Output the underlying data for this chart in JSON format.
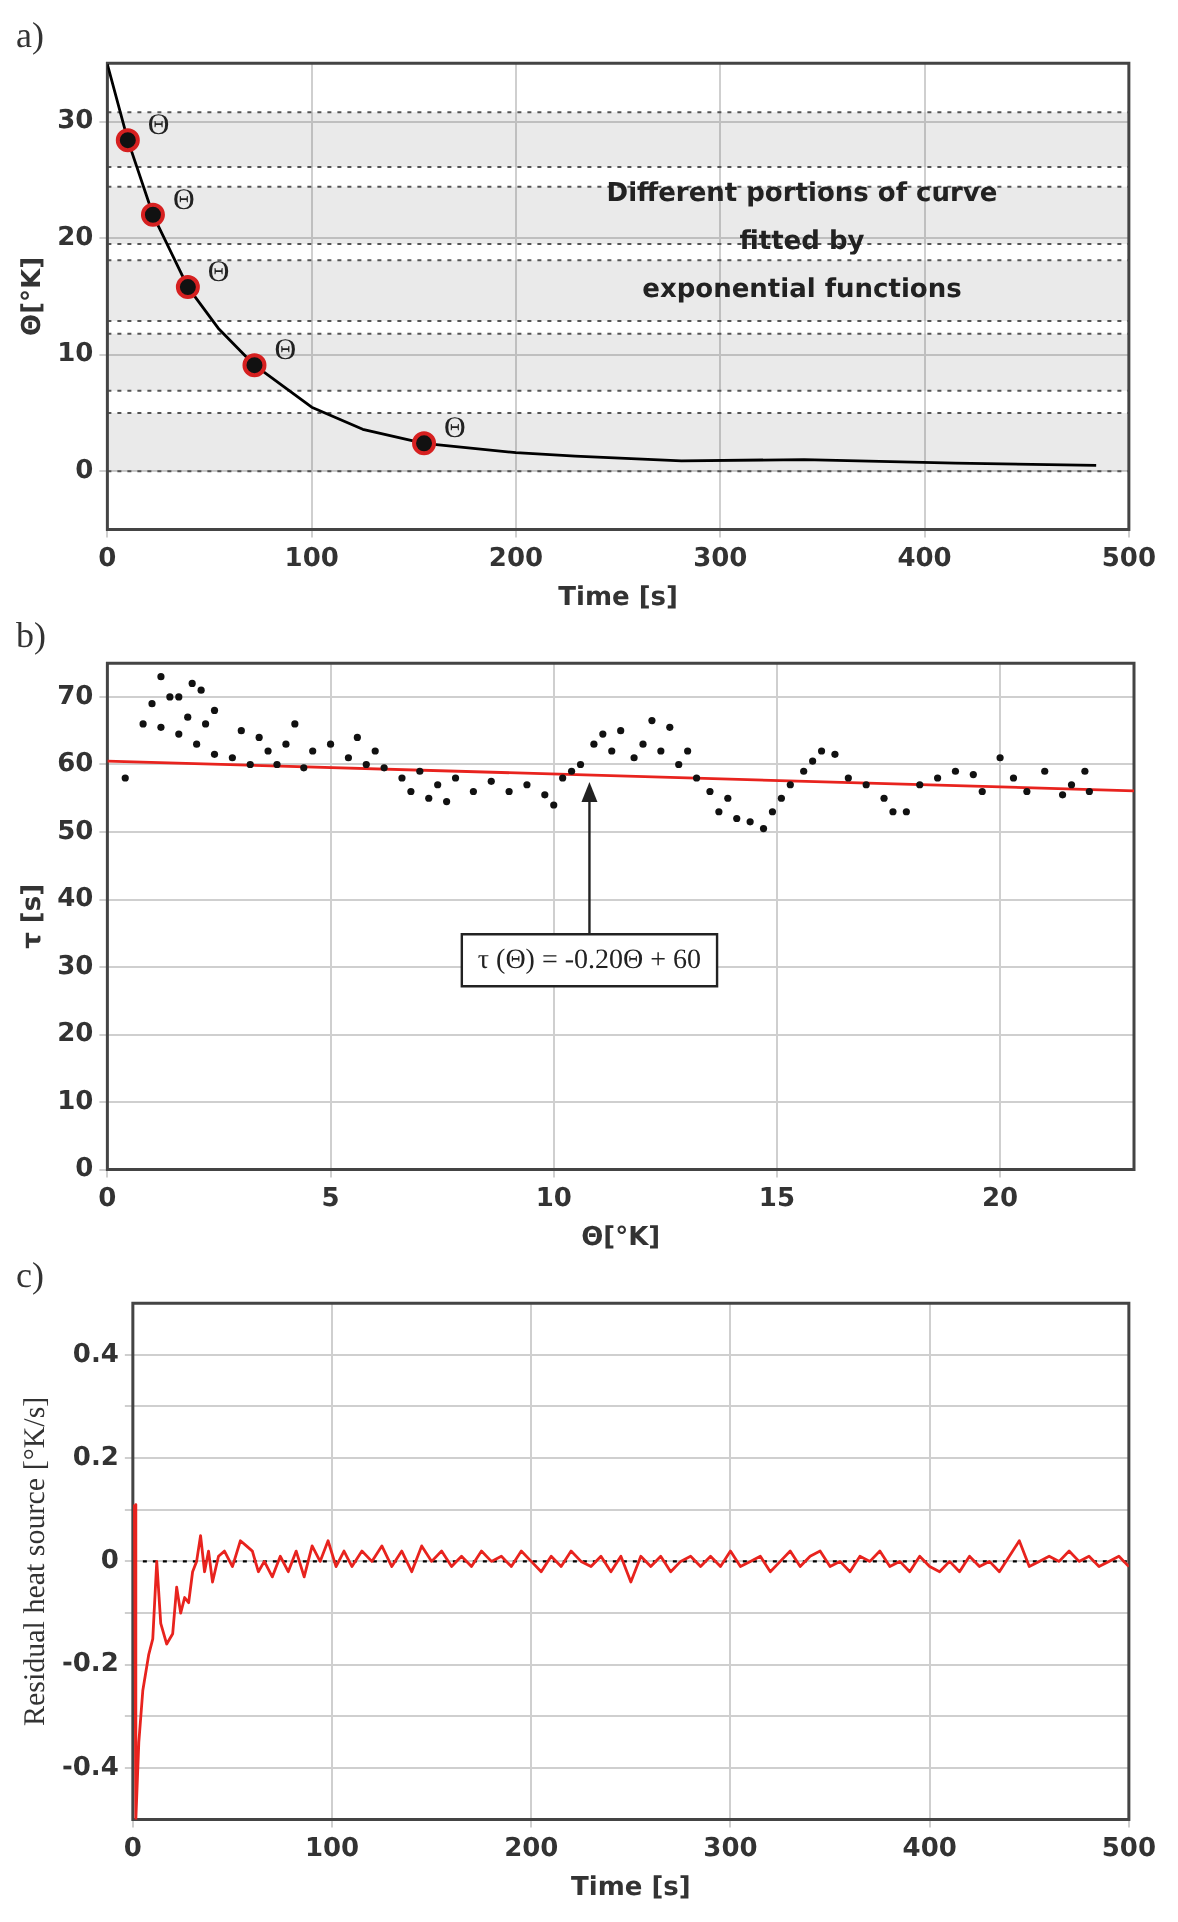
{
  "chart_data": [
    {
      "type": "line",
      "title": "a)",
      "xlabel": "Time [s]",
      "ylabel": "Θ[°K]",
      "xlim": [
        0,
        500
      ],
      "xticks": [
        0,
        100,
        200,
        300,
        400,
        500
      ],
      "ylim": [
        -5,
        35
      ],
      "yticks": [
        0,
        10,
        20,
        30
      ],
      "grid": true,
      "legend": false,
      "series": [
        {
          "color": "#000000",
          "marker": "none",
          "x": [
            0,
            10,
            22.3,
            39.4,
            54.6,
            72,
            100,
            125,
            155,
            200,
            229,
            281,
            341,
            415,
            484
          ],
          "values": [
            34.9,
            28.4,
            22,
            15.8,
            12.2,
            9.1,
            5.5,
            3.6,
            2.4,
            1.6,
            1.3,
            0.9,
            1,
            0.7,
            0.5
          ]
        },
        {
          "type": "scatter",
          "color": "#d62020",
          "marker": "circle",
          "x": [
            10,
            22.3,
            39.4,
            72,
            155
          ],
          "values": [
            28.4,
            22,
            15.8,
            9.1,
            2.4
          ]
        }
      ],
      "bands": [
        {
          "axis": "y",
          "from": 26.1,
          "to": 30.8,
          "color": "#555555"
        },
        {
          "axis": "y",
          "from": 19.5,
          "to": 24.4,
          "color": "#555555"
        },
        {
          "axis": "y",
          "from": 12.9,
          "to": 18.1,
          "color": "#555555"
        },
        {
          "axis": "y",
          "from": 6.9,
          "to": 11.8,
          "color": "#555555"
        },
        {
          "axis": "y",
          "from": 0,
          "to": 5,
          "color": "#555555"
        }
      ],
      "annotations": [
        "Different portions of curve\nfitted by\nexponential functions",
        {
          "text": "Θ",
          "x": 10,
          "y": 28.4
        },
        {
          "text": "Θ",
          "x": 22.3,
          "y": 22
        },
        {
          "text": "Θ",
          "x": 39.4,
          "y": 15.8
        },
        {
          "text": "Θ",
          "x": 72,
          "y": 9.1
        },
        {
          "text": "Θ",
          "x": 155,
          "y": 2.4
        }
      ]
    },
    {
      "type": "scatter",
      "title": "b)",
      "xlabel": "Θ[°K]",
      "ylabel": "τ [s]",
      "xlim": [
        0,
        23
      ],
      "xticks": [
        0,
        5,
        10,
        15,
        20
      ],
      "ylim": [
        0,
        75
      ],
      "yticks": [
        0,
        10,
        20,
        30,
        40,
        50,
        60,
        70
      ],
      "grid": true,
      "legend": false,
      "series": [
        {
          "color": "#111111",
          "marker": "circle",
          "x": [
            0.4,
            0.8,
            1.0,
            1.2,
            1.4,
            1.6,
            1.8,
            1.9,
            2.1,
            2.2,
            2.4,
            1.2,
            1.6,
            2.0,
            2.4,
            2.8,
            3.0,
            3.2,
            3.4,
            3.6,
            3.8,
            4.0,
            4.2,
            4.4,
            4.6,
            5.0,
            5.4,
            5.6,
            5.8,
            6.0,
            6.2,
            6.6,
            6.8,
            7.0,
            7.2,
            7.4,
            7.6,
            7.8,
            8.2,
            8.6,
            9.0,
            9.4,
            9.8,
            10.0,
            10.2,
            10.4,
            10.6,
            10.9,
            11.1,
            11.3,
            11.5,
            11.8,
            12.0,
            12.2,
            12.4,
            12.6,
            12.8,
            13.0,
            13.2,
            13.5,
            13.7,
            13.9,
            14.1,
            14.4,
            14.7,
            14.9,
            15.1,
            15.3,
            15.6,
            15.8,
            16.0,
            16.3,
            16.6,
            17.0,
            17.4,
            17.6,
            17.9,
            18.2,
            18.6,
            19.0,
            19.4,
            19.6,
            20.0,
            20.3,
            20.6,
            21.0,
            21.4,
            21.6,
            21.9,
            22.0
          ],
          "values": [
            58,
            66,
            69,
            73,
            70,
            70,
            67,
            72,
            71,
            66,
            68,
            65.5,
            64.5,
            63,
            61.5,
            61,
            65,
            60,
            64,
            62,
            60,
            63,
            66,
            59.5,
            62,
            63,
            61,
            64,
            60,
            62,
            59.5,
            58,
            56,
            59,
            55,
            57,
            54.5,
            58,
            56,
            57.5,
            56,
            57,
            55.5,
            54,
            58,
            59,
            60,
            63,
            64.5,
            62,
            65,
            61,
            63,
            66.5,
            62,
            65.5,
            60,
            62,
            58,
            56,
            53,
            55,
            52,
            51.5,
            50.5,
            53,
            55,
            57,
            59,
            60.5,
            62,
            61.5,
            58,
            57,
            55,
            53,
            53,
            57,
            58,
            59,
            58.5,
            56,
            61,
            58,
            56,
            59,
            55.5,
            57,
            59,
            56
          ]
        },
        {
          "type": "line",
          "color": "#e8231e",
          "marker": "none",
          "x": [
            0,
            23
          ],
          "values": [
            60.5,
            56.1
          ]
        }
      ],
      "annotations": [
        {
          "text": "τ (Θ) = -0.20Θ + 60",
          "x": 10.8,
          "y": 58
        }
      ]
    },
    {
      "type": "line",
      "title": "c)",
      "xlabel": "Time [s]",
      "ylabel": "Residual heat source [°K/s]",
      "xlim": [
        0,
        500
      ],
      "xticks": [
        0,
        100,
        200,
        300,
        400,
        500
      ],
      "ylim": [
        -0.5,
        0.5
      ],
      "yticks": [
        -0.4,
        {
          "value": -0.3,
          "label": null
        },
        -0.2,
        {
          "value": -0.1,
          "label": null
        },
        0,
        {
          "value": 0.1,
          "label": null
        },
        0.2,
        {
          "value": 0.3,
          "label": null
        },
        0.4
      ],
      "grid": true,
      "legend": false,
      "ref_lines": [
        {
          "axis": "y",
          "value": 0,
          "color": "#000000",
          "line_style": "dotted"
        }
      ],
      "series": [
        {
          "color": "#e8231e",
          "marker": "none",
          "x": [
            0.8,
            1.5,
            3,
            5,
            8,
            10,
            12,
            14,
            17,
            20,
            22,
            24,
            26,
            28,
            30,
            32,
            34,
            36,
            38,
            40,
            43,
            46,
            50,
            54,
            57,
            60,
            63,
            66,
            70,
            74,
            78,
            82,
            86,
            90,
            94,
            98,
            102,
            106,
            110,
            115,
            120,
            125,
            130,
            135,
            140,
            145,
            150,
            155,
            160,
            165,
            170,
            175,
            180,
            185,
            190,
            195,
            200,
            205,
            210,
            215,
            220,
            225,
            230,
            235,
            240,
            245,
            250,
            255,
            260,
            265,
            270,
            275,
            280,
            285,
            290,
            295,
            300,
            305,
            310,
            315,
            320,
            325,
            330,
            335,
            340,
            345,
            350,
            355,
            360,
            365,
            370,
            375,
            380,
            385,
            390,
            395,
            400,
            405,
            410,
            415,
            420,
            425,
            430,
            435,
            440,
            445,
            450,
            455,
            460,
            465,
            470,
            475,
            480,
            485,
            490,
            495,
            500
          ],
          "values": [
            0.11,
            -0.5,
            -0.35,
            -0.25,
            -0.18,
            -0.15,
            0.0,
            -0.12,
            -0.16,
            -0.14,
            -0.05,
            -0.1,
            -0.07,
            -0.08,
            -0.02,
            0.0,
            0.05,
            -0.02,
            0.02,
            -0.04,
            0.01,
            0.02,
            -0.01,
            0.04,
            0.03,
            0.02,
            -0.02,
            0.0,
            -0.03,
            0.01,
            -0.02,
            0.02,
            -0.03,
            0.03,
            0.0,
            0.04,
            -0.01,
            0.02,
            -0.01,
            0.02,
            0.0,
            0.03,
            -0.01,
            0.02,
            -0.02,
            0.03,
            0.0,
            0.02,
            -0.01,
            0.01,
            -0.01,
            0.02,
            0.0,
            0.01,
            -0.01,
            0.02,
            0.0,
            -0.02,
            0.01,
            -0.01,
            0.02,
            0.0,
            -0.01,
            0.01,
            -0.02,
            0.01,
            -0.04,
            0.01,
            -0.01,
            0.01,
            -0.02,
            0.0,
            0.01,
            -0.01,
            0.01,
            -0.01,
            0.02,
            -0.01,
            0.0,
            0.01,
            -0.02,
            0.0,
            0.02,
            -0.01,
            0.01,
            0.02,
            -0.01,
            0.0,
            -0.02,
            0.01,
            0.0,
            0.02,
            -0.01,
            0.0,
            -0.02,
            0.01,
            -0.01,
            -0.02,
            0.0,
            -0.02,
            0.01,
            -0.01,
            0.0,
            -0.02,
            0.01,
            0.04,
            -0.01,
            0.0,
            0.01,
            0.0,
            0.02,
            0.0,
            0.01,
            -0.01,
            0.0,
            0.01,
            -0.01
          ]
        }
      ]
    }
  ]
}
